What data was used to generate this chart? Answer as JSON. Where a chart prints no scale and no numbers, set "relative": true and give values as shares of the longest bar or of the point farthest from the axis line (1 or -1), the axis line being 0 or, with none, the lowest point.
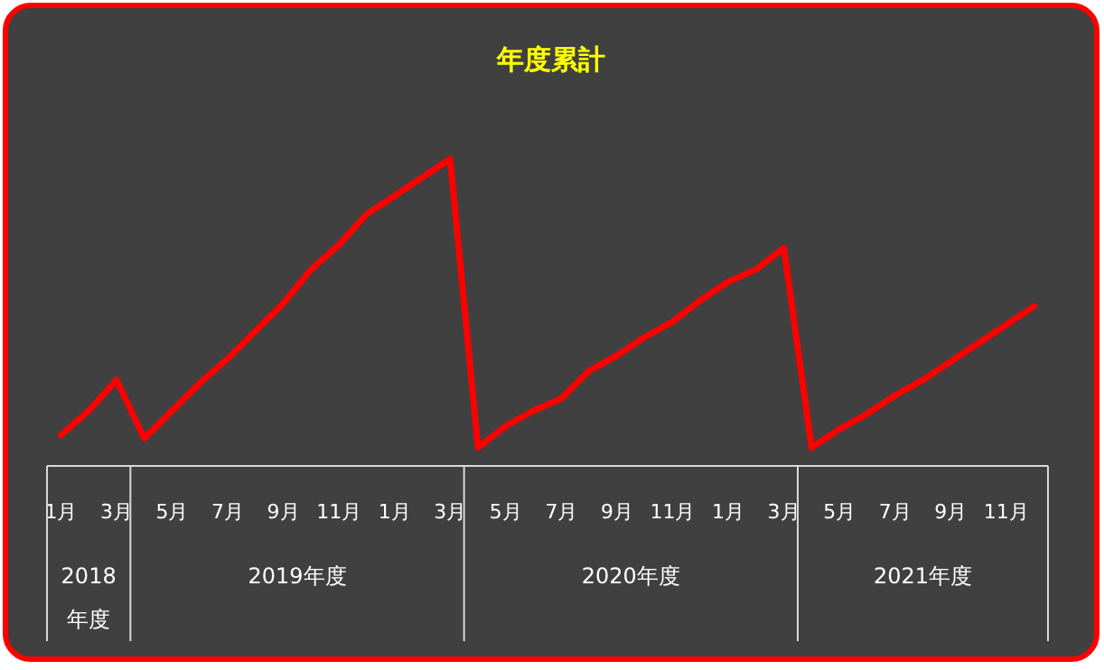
{
  "chart_data": {
    "type": "line",
    "title": "年度累計",
    "relative": true,
    "color": "#ff0000",
    "categories": [
      "1月",
      null,
      "3月",
      null,
      "5月",
      null,
      "7月",
      null,
      "9月",
      null,
      "11月",
      null,
      "1月",
      null,
      "3月",
      null,
      "5月",
      null,
      "7月",
      null,
      "9月",
      null,
      "11月",
      null,
      "1月",
      null,
      "3月",
      null,
      "5月",
      null,
      "7月",
      null,
      "9月",
      null,
      "11月",
      null
    ],
    "values": [
      0.1,
      0.18,
      0.28,
      0.09,
      0.18,
      0.27,
      0.35,
      0.44,
      0.53,
      0.64,
      0.72,
      0.82,
      0.88,
      0.94,
      1,
      0.06,
      0.13,
      0.18,
      0.22,
      0.31,
      0.36,
      0.42,
      0.47,
      0.54,
      0.6,
      0.64,
      0.71,
      0.06,
      0.12,
      0.17,
      0.23,
      0.28,
      0.34,
      0.4,
      0.46,
      0.52
    ],
    "annotations": [
      "2018年度",
      "2019年度",
      "2020年度",
      "2021年度"
    ]
  }
}
